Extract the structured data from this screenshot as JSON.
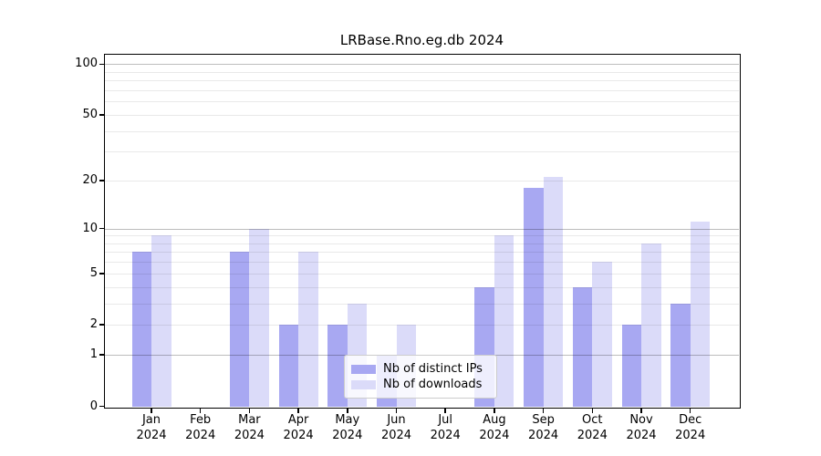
{
  "chart_data": {
    "type": "bar",
    "title": "LRBase.Rno.eg.db 2024",
    "categories": [
      "Jan",
      "Feb",
      "Mar",
      "Apr",
      "May",
      "Jun",
      "Jul",
      "Aug",
      "Sep",
      "Oct",
      "Nov",
      "Dec"
    ],
    "year_label": "2024",
    "series": [
      {
        "name": "Nb of distinct IPs",
        "color": "#a8a8f2",
        "values": [
          7,
          0,
          7,
          2,
          2,
          1,
          0,
          4,
          18,
          4,
          2,
          3
        ]
      },
      {
        "name": "Nb of downloads",
        "color": "#dbdbf9",
        "values": [
          9,
          0,
          10,
          7,
          3,
          2,
          0,
          9,
          21,
          6,
          8,
          11
        ]
      }
    ],
    "xlabel": "",
    "ylabel": "",
    "yscale": "log1p",
    "ylim": [
      0,
      114
    ],
    "yticks": [
      0,
      1,
      2,
      5,
      10,
      20,
      50,
      100
    ],
    "major_gridlines": [
      1,
      10,
      100
    ],
    "minor_gridlines": [
      2,
      3,
      4,
      5,
      6,
      7,
      8,
      9,
      20,
      30,
      40,
      50,
      60,
      70,
      80,
      90
    ],
    "grid": "horizontal, drawn above bars",
    "legend_position": "lower center"
  },
  "colors": {
    "background": "#ffffff",
    "axis": "#000000",
    "major_grid": "#c3c3c3",
    "minor_grid": "#ebebeb",
    "legend_border": "#cccccc"
  }
}
